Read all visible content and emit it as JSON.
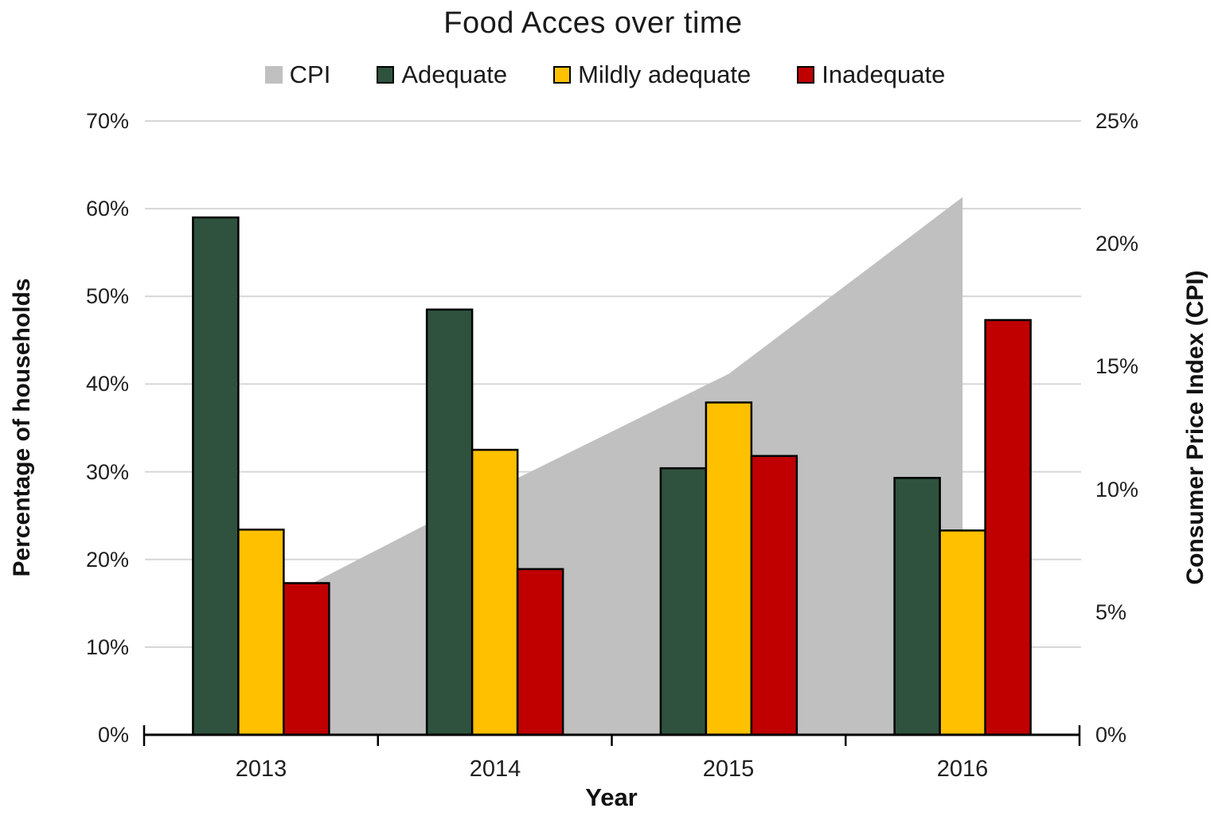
{
  "chart": {
    "title": "Food Acces over time",
    "legend": [
      {
        "label": "CPI",
        "color": "#C0C0C0",
        "bordered": false
      },
      {
        "label": "Adequate",
        "color": "#2E523E",
        "bordered": true
      },
      {
        "label": "Mildly adequate",
        "color": "#FFC000",
        "bordered": true
      },
      {
        "label": "Inadequate",
        "color": "#C00000",
        "bordered": true
      }
    ],
    "ylabel_left": "Percentage of households",
    "ylabel_right": "Consumer Price Index (CPI)",
    "xlabel": "Year",
    "left_ticks": [
      "70%",
      "60%",
      "50%",
      "40%",
      "30%",
      "20%",
      "10%",
      "0%"
    ],
    "right_ticks": [
      "25%",
      "20%",
      "15%",
      "10%",
      "5%",
      "0%"
    ]
  },
  "chart_data": {
    "type": "combo",
    "subtypes": [
      "area",
      "bar"
    ],
    "title": "Food Acces over time",
    "xlabel": "Year",
    "ylabel_left": "Percentage of households",
    "ylabel_right": "Consumer Price Index (CPI)",
    "categories": [
      "2013",
      "2014",
      "2015",
      "2016"
    ],
    "series": [
      {
        "name": "CPI",
        "type": "area",
        "axis": "right",
        "color": "#C0C0C0",
        "values": [
          5.1,
          10.0,
          14.7,
          21.9
        ]
      },
      {
        "name": "Adequate",
        "type": "bar",
        "axis": "left",
        "color": "#2E523E",
        "values": [
          59.0,
          48.5,
          30.4,
          29.3
        ]
      },
      {
        "name": "Mildly adequate",
        "type": "bar",
        "axis": "left",
        "color": "#FFC000",
        "values": [
          23.4,
          32.5,
          37.9,
          23.3
        ]
      },
      {
        "name": "Inadequate",
        "type": "bar",
        "axis": "left",
        "color": "#C00000",
        "values": [
          17.3,
          18.9,
          31.8,
          47.3
        ]
      }
    ],
    "ylim_left": [
      0,
      70
    ],
    "ylim_right": [
      0,
      25
    ],
    "grid": true,
    "gridline_color": "#D6D6D6",
    "legend_position": "top"
  }
}
